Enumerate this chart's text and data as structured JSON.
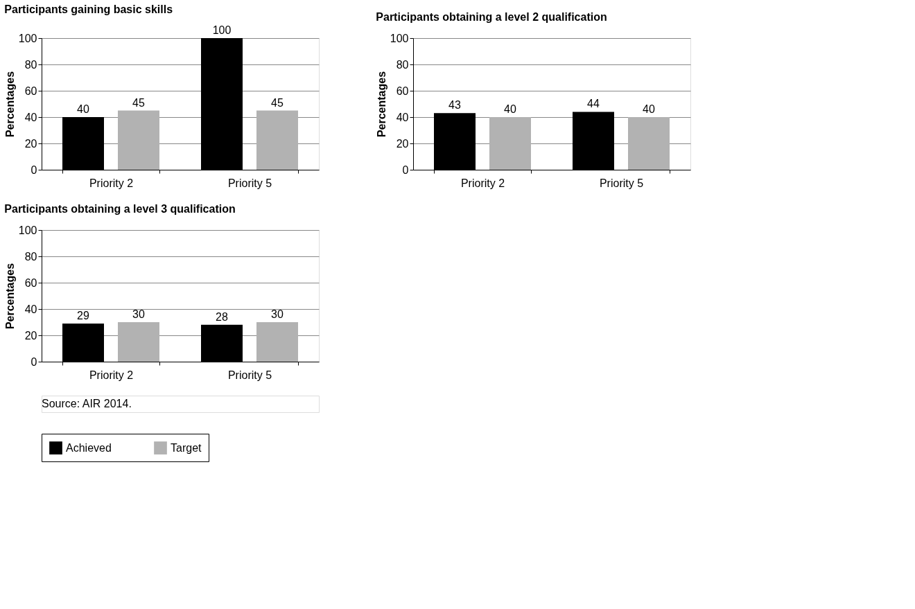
{
  "chart_data": [
    {
      "type": "bar",
      "title": "Participants gaining basic skills",
      "ylabel": "Percentages",
      "categories": [
        "Priority 2",
        "Priority 5"
      ],
      "ylim": [
        0,
        100
      ],
      "yticks": [
        0,
        20,
        40,
        60,
        80,
        100
      ],
      "grid": "y",
      "data_labels": true,
      "legend": "bottom",
      "series": [
        {
          "name": "Achieved",
          "color": "#000000",
          "values": [
            40,
            100
          ]
        },
        {
          "name": "Target",
          "color": "#b2b2b2",
          "values": [
            45,
            45
          ]
        }
      ]
    },
    {
      "type": "bar",
      "title": "Participants obtaining a level 2 qualification",
      "ylabel": "Percentages",
      "categories": [
        "Priority 2",
        "Priority 5"
      ],
      "ylim": [
        0,
        100
      ],
      "yticks": [
        0,
        20,
        40,
        60,
        80,
        100
      ],
      "grid": "y",
      "data_labels": true,
      "legend": "bottom",
      "series": [
        {
          "name": "Achieved",
          "color": "#000000",
          "values": [
            43,
            44
          ]
        },
        {
          "name": "Target",
          "color": "#b2b2b2",
          "values": [
            40,
            40
          ]
        }
      ]
    },
    {
      "type": "bar",
      "title": "Participants obtaining a level 3 qualification",
      "ylabel": "Percentages",
      "categories": [
        "Priority 2",
        "Priority 5"
      ],
      "ylim": [
        0,
        100
      ],
      "yticks": [
        0,
        20,
        40,
        60,
        80,
        100
      ],
      "grid": "y",
      "data_labels": true,
      "legend": "bottom",
      "annotations": [
        "Source: AIR 2014."
      ],
      "series": [
        {
          "name": "Achieved",
          "color": "#000000",
          "values": [
            29,
            28
          ]
        },
        {
          "name": "Target",
          "color": "#b2b2b2",
          "values": [
            30,
            30
          ]
        }
      ]
    }
  ]
}
